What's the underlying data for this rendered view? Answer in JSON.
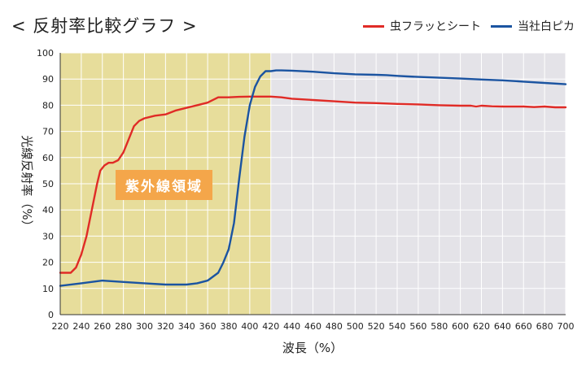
{
  "chart_data": {
    "type": "line",
    "title": "< 反射率比較グラフ >",
    "xlabel": "波長（%）",
    "ylabel": "光線反射率（%）",
    "xlim": [
      220,
      700
    ],
    "ylim": [
      0,
      100
    ],
    "x_ticks": [
      220,
      240,
      260,
      280,
      300,
      320,
      340,
      360,
      380,
      400,
      420,
      440,
      460,
      480,
      500,
      520,
      540,
      560,
      580,
      600,
      620,
      640,
      660,
      680,
      700
    ],
    "y_ticks": [
      0,
      10,
      20,
      30,
      40,
      50,
      60,
      70,
      80,
      90,
      100
    ],
    "grid": true,
    "legend_position": "top-right",
    "regions": [
      {
        "label": "紫外線領域",
        "x_range": [
          220,
          420
        ],
        "color": "#e7dd9b"
      },
      {
        "label": "",
        "x_range": [
          420,
          700
        ],
        "color": "#e4e3e8"
      }
    ],
    "series": [
      {
        "name": "虫フラッとシート",
        "color": "#e02b26",
        "x": [
          220,
          225,
          230,
          235,
          240,
          245,
          250,
          255,
          258,
          262,
          266,
          270,
          275,
          280,
          285,
          290,
          295,
          300,
          310,
          320,
          330,
          340,
          350,
          360,
          370,
          380,
          390,
          400,
          410,
          420,
          430,
          440,
          460,
          480,
          500,
          520,
          540,
          560,
          580,
          600,
          610,
          615,
          620,
          630,
          640,
          650,
          660,
          670,
          680,
          690,
          700
        ],
        "y": [
          16,
          16,
          16,
          18,
          23,
          30,
          40,
          50,
          55,
          57,
          58,
          58,
          59,
          62,
          67,
          72,
          74,
          75,
          76,
          76.5,
          78,
          79,
          80,
          81,
          83,
          83,
          83.2,
          83.3,
          83.3,
          83.3,
          83,
          82.5,
          82,
          81.5,
          81,
          80.8,
          80.5,
          80.3,
          80,
          79.8,
          79.8,
          79.5,
          79.8,
          79.6,
          79.5,
          79.5,
          79.5,
          79.3,
          79.5,
          79.2,
          79.2
        ]
      },
      {
        "name": "当社白ピカ",
        "color": "#1b54a1",
        "x": [
          220,
          240,
          260,
          280,
          300,
          320,
          340,
          350,
          360,
          370,
          375,
          380,
          385,
          390,
          395,
          400,
          405,
          410,
          415,
          420,
          425,
          430,
          440,
          460,
          480,
          500,
          520,
          530,
          540,
          550,
          560,
          580,
          600,
          620,
          640,
          660,
          680,
          700
        ],
        "y": [
          11,
          12,
          13,
          12.5,
          12,
          11.5,
          11.5,
          12,
          13,
          16,
          20,
          25,
          35,
          52,
          68,
          80,
          87,
          91,
          93,
          93,
          93.3,
          93.3,
          93.2,
          92.8,
          92.2,
          91.8,
          91.6,
          91.5,
          91.2,
          91,
          90.8,
          90.5,
          90.2,
          89.8,
          89.5,
          89,
          88.5,
          88
        ]
      }
    ]
  }
}
